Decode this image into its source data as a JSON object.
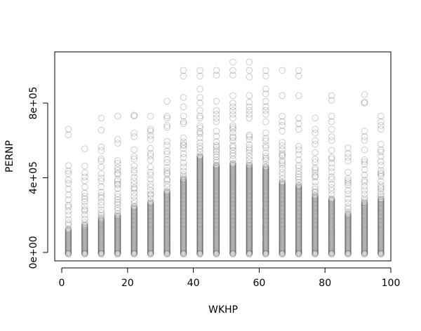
{
  "chart_data": {
    "type": "scatter",
    "title": "",
    "xlabel": "WKHP",
    "ylabel": "PERNP",
    "xlim": [
      0,
      100
    ],
    "ylim": [
      -90000,
      1040000
    ],
    "xticks": [
      0,
      20,
      40,
      60,
      80,
      100
    ],
    "xtick_labels": [
      "0",
      "20",
      "40",
      "60",
      "80",
      "100"
    ],
    "yticks": [
      0,
      400000,
      800000
    ],
    "ytick_labels": [
      "0e+00",
      "4e+05",
      "8e+05"
    ],
    "grid": false,
    "legend": "none",
    "marker": "open-circle",
    "marker_color": "#000000",
    "marker_opacity": 0.2,
    "columns": [
      {
        "x": 2,
        "dense_max": 130000,
        "spread_max": 480000,
        "points": [
          660000,
          630000
        ]
      },
      {
        "x": 7,
        "dense_max": 150000,
        "spread_max": 470000,
        "points": [
          555000
        ]
      },
      {
        "x": 12,
        "dense_max": 180000,
        "spread_max": 530000,
        "points": [
          720000,
          655000,
          565000,
          545000
        ]
      },
      {
        "x": 17,
        "dense_max": 200000,
        "spread_max": 510000,
        "points": [
          730000,
          605000,
          585000
        ]
      },
      {
        "x": 22,
        "dense_max": 250000,
        "spread_max": 525000,
        "points": [
          735000,
          730000,
          640000,
          620000,
          550000
        ]
      },
      {
        "x": 27,
        "dense_max": 270000,
        "spread_max": 560000,
        "points": [
          730000,
          660000,
          650000,
          625000,
          605000
        ]
      },
      {
        "x": 32,
        "dense_max": 330000,
        "spread_max": 600000,
        "points": [
          810000,
          730000,
          720000,
          680000,
          670000
        ]
      },
      {
        "x": 37,
        "dense_max": 400000,
        "spread_max": 640000,
        "points": [
          975000,
          945000,
          830000,
          780000,
          730000,
          700000,
          690000
        ]
      },
      {
        "x": 42,
        "dense_max": 520000,
        "spread_max": 690000,
        "points": [
          975000,
          945000,
          875000,
          830000,
          800000,
          760000,
          730000,
          720000
        ]
      },
      {
        "x": 47,
        "dense_max": 470000,
        "spread_max": 660000,
        "points": [
          975000,
          950000,
          810000,
          760000,
          740000,
          720000,
          700000
        ]
      },
      {
        "x": 52,
        "dense_max": 480000,
        "spread_max": 680000,
        "points": [
          1020000,
          975000,
          950000,
          840000,
          800000,
          780000,
          760000,
          740000,
          720000
        ]
      },
      {
        "x": 57,
        "dense_max": 470000,
        "spread_max": 660000,
        "points": [
          1020000,
          975000,
          940000,
          840000,
          805000,
          780000,
          760000,
          740000,
          720000
        ]
      },
      {
        "x": 62,
        "dense_max": 460000,
        "spread_max": 650000,
        "points": [
          975000,
          945000,
          875000,
          850000,
          810000,
          780000,
          760000,
          740000,
          700000
        ]
      },
      {
        "x": 67,
        "dense_max": 380000,
        "spread_max": 600000,
        "points": [
          975000,
          840000,
          730000,
          700000,
          680000,
          650000
        ]
      },
      {
        "x": 72,
        "dense_max": 360000,
        "spread_max": 600000,
        "points": [
          975000,
          945000,
          840000,
          720000,
          690000,
          660000
        ]
      },
      {
        "x": 77,
        "dense_max": 310000,
        "spread_max": 560000,
        "points": [
          720000,
          660000,
          640000,
          600000,
          580000
        ]
      },
      {
        "x": 82,
        "dense_max": 290000,
        "spread_max": 560000,
        "points": [
          840000,
          815000,
          730000,
          700000,
          660000,
          620000,
          600000
        ]
      },
      {
        "x": 87,
        "dense_max": 210000,
        "spread_max": 460000,
        "points": [
          560000,
          530000,
          510000,
          490000
        ]
      },
      {
        "x": 92,
        "dense_max": 270000,
        "spread_max": 500000,
        "points": [
          845000,
          805000,
          800000,
          650000,
          620000,
          600000,
          550000
        ]
      },
      {
        "x": 97,
        "dense_max": 290000,
        "spread_max": 560000,
        "points": [
          730000,
          700000,
          680000,
          660000,
          580000
        ]
      }
    ]
  }
}
